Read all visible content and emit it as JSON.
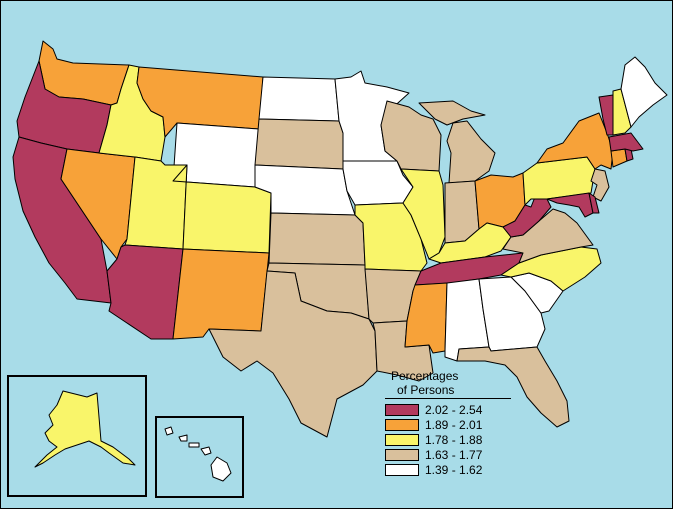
{
  "legend": {
    "title_line1": "Percentages",
    "title_line2": "of Persons",
    "classes": [
      {
        "label": "2.02 - 2.54",
        "color": "#b23a5e"
      },
      {
        "label": "1.89 - 2.01",
        "color": "#f7a239"
      },
      {
        "label": "1.78 - 1.88",
        "color": "#f9f56a"
      },
      {
        "label": "1.63 - 1.77",
        "color": "#d9c09c"
      },
      {
        "label": "1.39 - 1.62",
        "color": "#ffffff"
      }
    ]
  },
  "states": {
    "WA": 1,
    "OR": 0,
    "CA": 0,
    "NV": 1,
    "ID": 2,
    "MT": 1,
    "WY": 4,
    "UT": 2,
    "AZ": 0,
    "CO": 2,
    "NM": 1,
    "ND": 4,
    "SD": 3,
    "NE": 4,
    "KS": 3,
    "OK": 3,
    "TX": 3,
    "MN": 4,
    "IA": 4,
    "MO": 2,
    "AR": 3,
    "LA": 3,
    "WI": 3,
    "IL": 2,
    "MI": 3,
    "IN": 3,
    "OH": 1,
    "KY": 2,
    "TN": 0,
    "MS": 1,
    "AL": 4,
    "GA": 4,
    "FL": 3,
    "SC": 4,
    "NC": 2,
    "VA": 3,
    "WV": 0,
    "PA": 2,
    "NY": 1,
    "NJ": 3,
    "DE": 0,
    "MD": 0,
    "CT": 1,
    "RI": 0,
    "MA": 0,
    "VT": 0,
    "NH": 2,
    "ME": 4,
    "AK": 2,
    "HI": 4
  },
  "background_color": "#a8dce8"
}
